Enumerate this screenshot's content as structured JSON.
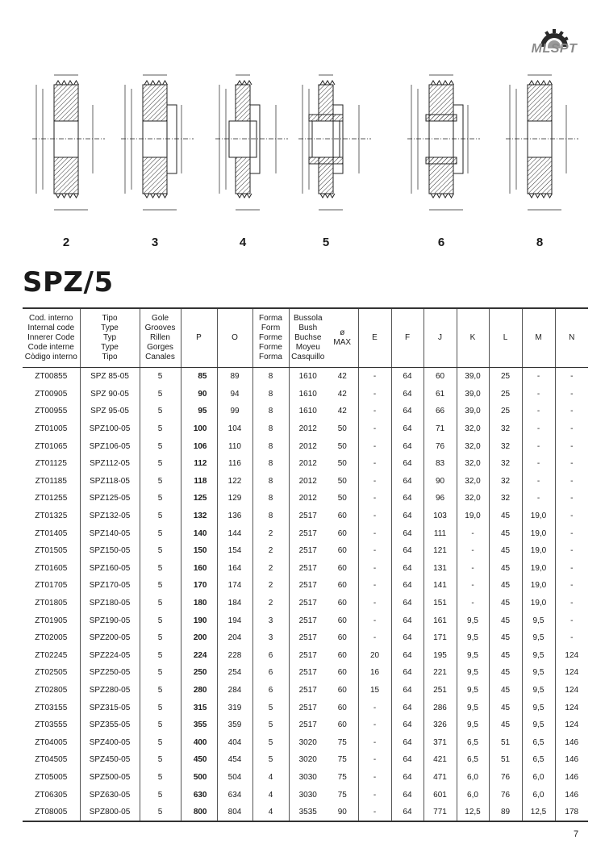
{
  "logo": {
    "text": "MLSPT"
  },
  "figures": [
    {
      "label": "2",
      "type": 2
    },
    {
      "label": "3",
      "type": 3
    },
    {
      "label": "4",
      "type": 4
    },
    {
      "label": "5",
      "type": 5
    },
    {
      "label": "6",
      "type": 6
    },
    {
      "label": "8",
      "type": 8
    }
  ],
  "title": "SPZ/5",
  "table": {
    "headers": [
      "Cod. interno\nInternal code\nInnerer Code\nCode interne\nCòdigo interno",
      "Tipo\nType\nTyp\nType\nTipo",
      "Gole\nGrooves\nRillen\nGorges\nCanales",
      "P",
      "O",
      "Forma\nForm\nForme\nForme\nForma",
      "Bussola\nBush\nBuchse\nMoyeu\nCasquillo",
      "ø\nMAX",
      "E",
      "F",
      "J",
      "K",
      "L",
      "M",
      "N"
    ],
    "rows": [
      [
        "ZT00855",
        "SPZ 85-05",
        "5",
        "85",
        "89",
        "8",
        "1610",
        "42",
        "-",
        "64",
        "60",
        "39,0",
        "25",
        "-",
        "-"
      ],
      [
        "ZT00905",
        "SPZ 90-05",
        "5",
        "90",
        "94",
        "8",
        "1610",
        "42",
        "-",
        "64",
        "61",
        "39,0",
        "25",
        "-",
        "-"
      ],
      [
        "ZT00955",
        "SPZ 95-05",
        "5",
        "95",
        "99",
        "8",
        "1610",
        "42",
        "-",
        "64",
        "66",
        "39,0",
        "25",
        "-",
        "-"
      ],
      [
        "ZT01005",
        "SPZ100-05",
        "5",
        "100",
        "104",
        "8",
        "2012",
        "50",
        "-",
        "64",
        "71",
        "32,0",
        "32",
        "-",
        "-"
      ],
      [
        "ZT01065",
        "SPZ106-05",
        "5",
        "106",
        "110",
        "8",
        "2012",
        "50",
        "-",
        "64",
        "76",
        "32,0",
        "32",
        "-",
        "-"
      ],
      [
        "ZT01125",
        "SPZ112-05",
        "5",
        "112",
        "116",
        "8",
        "2012",
        "50",
        "-",
        "64",
        "83",
        "32,0",
        "32",
        "-",
        "-"
      ],
      [
        "ZT01185",
        "SPZ118-05",
        "5",
        "118",
        "122",
        "8",
        "2012",
        "50",
        "-",
        "64",
        "90",
        "32,0",
        "32",
        "-",
        "-"
      ],
      [
        "ZT01255",
        "SPZ125-05",
        "5",
        "125",
        "129",
        "8",
        "2012",
        "50",
        "-",
        "64",
        "96",
        "32,0",
        "32",
        "-",
        "-"
      ],
      [
        "ZT01325",
        "SPZ132-05",
        "5",
        "132",
        "136",
        "8",
        "2517",
        "60",
        "-",
        "64",
        "103",
        "19,0",
        "45",
        "19,0",
        "-"
      ],
      [
        "ZT01405",
        "SPZ140-05",
        "5",
        "140",
        "144",
        "2",
        "2517",
        "60",
        "-",
        "64",
        "111",
        "-",
        "45",
        "19,0",
        "-"
      ],
      [
        "ZT01505",
        "SPZ150-05",
        "5",
        "150",
        "154",
        "2",
        "2517",
        "60",
        "-",
        "64",
        "121",
        "-",
        "45",
        "19,0",
        "-"
      ],
      [
        "ZT01605",
        "SPZ160-05",
        "5",
        "160",
        "164",
        "2",
        "2517",
        "60",
        "-",
        "64",
        "131",
        "-",
        "45",
        "19,0",
        "-"
      ],
      [
        "ZT01705",
        "SPZ170-05",
        "5",
        "170",
        "174",
        "2",
        "2517",
        "60",
        "-",
        "64",
        "141",
        "-",
        "45",
        "19,0",
        "-"
      ],
      [
        "ZT01805",
        "SPZ180-05",
        "5",
        "180",
        "184",
        "2",
        "2517",
        "60",
        "-",
        "64",
        "151",
        "-",
        "45",
        "19,0",
        "-"
      ],
      [
        "ZT01905",
        "SPZ190-05",
        "5",
        "190",
        "194",
        "3",
        "2517",
        "60",
        "-",
        "64",
        "161",
        "9,5",
        "45",
        "9,5",
        "-"
      ],
      [
        "ZT02005",
        "SPZ200-05",
        "5",
        "200",
        "204",
        "3",
        "2517",
        "60",
        "-",
        "64",
        "171",
        "9,5",
        "45",
        "9,5",
        "-"
      ],
      [
        "ZT02245",
        "SPZ224-05",
        "5",
        "224",
        "228",
        "6",
        "2517",
        "60",
        "20",
        "64",
        "195",
        "9,5",
        "45",
        "9,5",
        "124"
      ],
      [
        "ZT02505",
        "SPZ250-05",
        "5",
        "250",
        "254",
        "6",
        "2517",
        "60",
        "16",
        "64",
        "221",
        "9,5",
        "45",
        "9,5",
        "124"
      ],
      [
        "ZT02805",
        "SPZ280-05",
        "5",
        "280",
        "284",
        "6",
        "2517",
        "60",
        "15",
        "64",
        "251",
        "9,5",
        "45",
        "9,5",
        "124"
      ],
      [
        "ZT03155",
        "SPZ315-05",
        "5",
        "315",
        "319",
        "5",
        "2517",
        "60",
        "-",
        "64",
        "286",
        "9,5",
        "45",
        "9,5",
        "124"
      ],
      [
        "ZT03555",
        "SPZ355-05",
        "5",
        "355",
        "359",
        "5",
        "2517",
        "60",
        "-",
        "64",
        "326",
        "9,5",
        "45",
        "9,5",
        "124"
      ],
      [
        "ZT04005",
        "SPZ400-05",
        "5",
        "400",
        "404",
        "5",
        "3020",
        "75",
        "-",
        "64",
        "371",
        "6,5",
        "51",
        "6,5",
        "146"
      ],
      [
        "ZT04505",
        "SPZ450-05",
        "5",
        "450",
        "454",
        "5",
        "3020",
        "75",
        "-",
        "64",
        "421",
        "6,5",
        "51",
        "6,5",
        "146"
      ],
      [
        "ZT05005",
        "SPZ500-05",
        "5",
        "500",
        "504",
        "4",
        "3030",
        "75",
        "-",
        "64",
        "471",
        "6,0",
        "76",
        "6,0",
        "146"
      ],
      [
        "ZT06305",
        "SPZ630-05",
        "5",
        "630",
        "634",
        "4",
        "3030",
        "75",
        "-",
        "64",
        "601",
        "6,0",
        "76",
        "6,0",
        "146"
      ],
      [
        "ZT08005",
        "SPZ800-05",
        "5",
        "800",
        "804",
        "4",
        "3535",
        "90",
        "-",
        "64",
        "771",
        "12,5",
        "89",
        "12,5",
        "178"
      ]
    ]
  },
  "page_number": "7"
}
